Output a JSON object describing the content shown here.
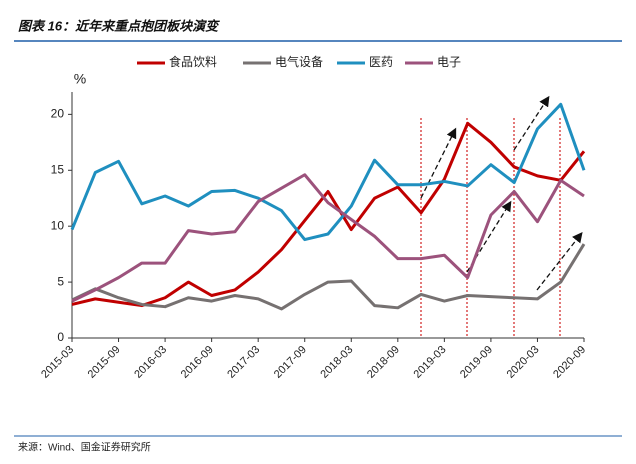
{
  "title": "图表 16：近年来重点抱团板块演变",
  "source": "来源：Wind、国金证券研究所",
  "chart_data": {
    "type": "line",
    "y_label": "%",
    "categories": [
      "2015-03",
      null,
      "2015-09",
      null,
      "2016-03",
      null,
      "2016-09",
      null,
      "2017-03",
      null,
      "2017-09",
      null,
      "2018-03",
      null,
      "2018-09",
      null,
      "2019-03",
      null,
      "2019-09",
      null,
      "2020-03",
      null,
      "2020-09"
    ],
    "ylim": [
      0,
      22
    ],
    "yticks": [
      0,
      5,
      10,
      15,
      20
    ],
    "series": [
      {
        "name": "食品饮料",
        "color": "#c00000",
        "values": [
          3.0,
          3.5,
          3.2,
          2.9,
          3.6,
          5.0,
          3.8,
          4.3,
          5.9,
          7.9,
          10.5,
          13.1,
          9.7,
          12.5,
          13.5,
          11.2,
          14.2,
          19.2,
          17.5,
          15.3,
          14.5,
          14.1,
          16.7
        ]
      },
      {
        "name": "电气设备",
        "color": "#767171",
        "values": [
          3.4,
          4.4,
          3.6,
          3.0,
          2.8,
          3.6,
          3.3,
          3.8,
          3.5,
          2.6,
          3.9,
          5.0,
          5.1,
          2.9,
          2.7,
          3.9,
          3.3,
          3.8,
          3.7,
          3.6,
          3.5,
          5.0,
          8.4
        ]
      },
      {
        "name": "医药",
        "color": "#1f8fbf",
        "values": [
          9.7,
          14.8,
          15.8,
          12.0,
          12.7,
          11.8,
          13.1,
          13.2,
          12.5,
          11.4,
          8.8,
          9.3,
          11.8,
          15.9,
          13.7,
          13.7,
          14.0,
          13.6,
          15.5,
          13.9,
          18.7,
          20.9,
          15.0
        ]
      },
      {
        "name": "电子",
        "color": "#9c527c",
        "values": [
          3.3,
          4.3,
          5.4,
          6.7,
          6.7,
          9.6,
          9.3,
          9.5,
          12.2,
          13.4,
          14.6,
          12.1,
          10.6,
          9.1,
          7.1,
          7.1,
          7.4,
          5.4,
          11.0,
          13.1,
          10.4,
          14.1,
          12.7
        ]
      }
    ]
  }
}
